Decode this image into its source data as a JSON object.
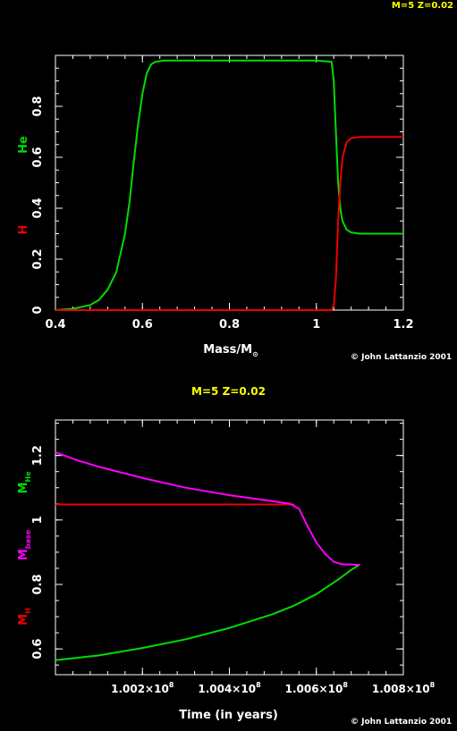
{
  "header_label": "M=5 Z=0.02",
  "colors": {
    "background": "#000000",
    "he": "#00dd00",
    "h": "#ee0000",
    "base": "#ff00ff",
    "title": "#ffff00"
  },
  "chart_data": [
    {
      "type": "line",
      "xlabel_main": "Mass/M",
      "xlabel_sub": "⊙",
      "ylabel": [
        {
          "text": "He",
          "color": "#00dd00"
        },
        {
          "text": "H",
          "color": "#ee0000"
        }
      ],
      "xlim": [
        0.4,
        1.2
      ],
      "ylim": [
        0,
        1
      ],
      "xticks": [
        0.4,
        0.6,
        0.8,
        1,
        1.2
      ],
      "xtick_labels": [
        "0.4",
        "0.6",
        "0.8",
        "1",
        "1.2"
      ],
      "yticks": [
        0,
        0.2,
        0.4,
        0.6,
        0.8
      ],
      "ytick_labels": [
        "0",
        "0.2",
        "0.4",
        "0.6",
        "0.8"
      ],
      "series": [
        {
          "name": "He",
          "color": "#00dd00",
          "x": [
            0.4,
            0.44,
            0.48,
            0.5,
            0.52,
            0.54,
            0.56,
            0.57,
            0.58,
            0.59,
            0.6,
            0.61,
            0.62,
            0.63,
            0.65,
            0.7,
            0.8,
            0.9,
            1.0,
            1.035,
            1.04,
            1.045,
            1.05,
            1.055,
            1.06,
            1.07,
            1.08,
            1.1,
            1.15,
            1.2
          ],
          "y": [
            0,
            0.005,
            0.02,
            0.04,
            0.08,
            0.15,
            0.3,
            0.42,
            0.58,
            0.73,
            0.85,
            0.93,
            0.965,
            0.975,
            0.98,
            0.98,
            0.98,
            0.98,
            0.98,
            0.975,
            0.9,
            0.7,
            0.5,
            0.4,
            0.35,
            0.315,
            0.305,
            0.3,
            0.3,
            0.3
          ]
        },
        {
          "name": "H",
          "color": "#ee0000",
          "x": [
            0.4,
            0.6,
            0.8,
            1.0,
            1.035,
            1.04,
            1.045,
            1.05,
            1.055,
            1.06,
            1.07,
            1.08,
            1.1,
            1.15,
            1.2
          ],
          "y": [
            0,
            0,
            0,
            0,
            0,
            0.02,
            0.12,
            0.35,
            0.5,
            0.6,
            0.66,
            0.675,
            0.68,
            0.68,
            0.68
          ]
        }
      ],
      "copyright": "© John Lattanzio 2001"
    },
    {
      "type": "line",
      "title": "M=5 Z=0.02",
      "xlabel": "Time (in years)",
      "ylabel": [
        {
          "main": "M",
          "sub": "He",
          "color": "#00dd00"
        },
        {
          "main": "M",
          "sub": "base",
          "color": "#ff00ff"
        },
        {
          "main": "M",
          "sub": "H",
          "color": "#ee0000"
        }
      ],
      "xlim": [
        1.0,
        1.008
      ],
      "ylim": [
        0.52,
        1.31
      ],
      "xticks": [
        1.002,
        1.004,
        1.006,
        1.008
      ],
      "xtick_labels": [
        {
          "main": "1.002×10",
          "exp": "8"
        },
        {
          "main": "1.004×10",
          "exp": "8"
        },
        {
          "main": "1.006×10",
          "exp": "8"
        },
        {
          "main": "1.008×10",
          "exp": "8"
        }
      ],
      "yticks": [
        0.6,
        0.8,
        1,
        1.2
      ],
      "ytick_labels": [
        "0.6",
        "0.8",
        "1",
        "1.2"
      ],
      "series": [
        {
          "name": "M_He",
          "color": "#00dd00",
          "x": [
            1.0,
            1.001,
            1.002,
            1.003,
            1.004,
            1.005,
            1.0055,
            1.006,
            1.0065,
            1.0068,
            1.007
          ],
          "y": [
            0.565,
            0.58,
            0.603,
            0.63,
            0.665,
            0.708,
            0.735,
            0.77,
            0.815,
            0.845,
            0.862
          ]
        },
        {
          "name": "M_H",
          "color": "#ee0000",
          "x": [
            1.0,
            1.002,
            1.004,
            1.005,
            1.0054,
            1.0055
          ],
          "y": [
            1.048,
            1.048,
            1.048,
            1.048,
            1.048,
            1.048
          ]
        },
        {
          "name": "M_base",
          "color": "#ff00ff",
          "x": [
            1.0,
            1.0005,
            1.001,
            1.002,
            1.003,
            1.004,
            1.005,
            1.0054,
            1.0056,
            1.0058,
            1.006,
            1.0062,
            1.0064,
            1.0066,
            1.0068,
            1.007
          ],
          "y": [
            1.21,
            1.185,
            1.165,
            1.13,
            1.1,
            1.077,
            1.058,
            1.05,
            1.035,
            0.98,
            0.93,
            0.895,
            0.87,
            0.862,
            0.862,
            0.86
          ]
        }
      ],
      "copyright": "© John Lattanzio 2001"
    }
  ]
}
